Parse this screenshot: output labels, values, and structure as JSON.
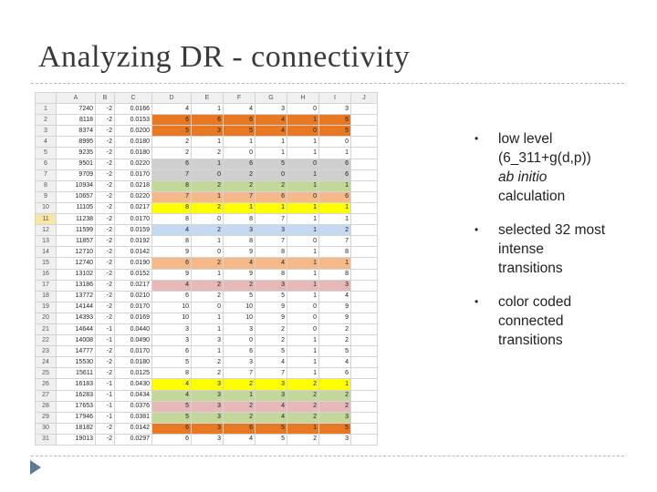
{
  "slide": {
    "title": "Analyzing DR - connectivity",
    "bullets": [
      {
        "lines": [
          "low level",
          "(6_311+g(d,p))"
        ],
        "italic": "ab initio",
        "after": "calculation"
      },
      {
        "lines": [
          "selected 32 most",
          "intense",
          "transitions"
        ]
      },
      {
        "lines": [
          "color coded",
          "connected",
          "transitions"
        ]
      }
    ]
  },
  "colors": {
    "orange": "#e97822",
    "light_orange": "#f5b98a",
    "gray": "#cfcfcf",
    "green": "#c4d79b",
    "yellow": "#ffff00",
    "blue": "#c5d9f1",
    "pink": "#e6b8b7"
  },
  "spreadsheet": {
    "columns": [
      "",
      "A",
      "B",
      "C",
      "D",
      "E",
      "F",
      "G",
      "H",
      "I",
      "J"
    ],
    "rows": [
      {
        "n": "1",
        "cells": [
          "7240",
          "-2",
          "0.0166",
          "4",
          "1",
          "4",
          "3",
          "0",
          "3"
        ],
        "color": ""
      },
      {
        "n": "2",
        "cells": [
          "8118",
          "-2",
          "0.0153",
          "6",
          "6",
          "6",
          "4",
          "1",
          "6"
        ],
        "color": "orange"
      },
      {
        "n": "3",
        "cells": [
          "8374",
          "-2",
          "0.0200",
          "5",
          "3",
          "5",
          "4",
          "0",
          "5"
        ],
        "color": "orange"
      },
      {
        "n": "4",
        "cells": [
          "8995",
          "-2",
          "0.0180",
          "2",
          "1",
          "1",
          "1",
          "1",
          "0"
        ],
        "color": ""
      },
      {
        "n": "5",
        "cells": [
          "9235",
          "-2",
          "0.0180",
          "2",
          "2",
          "0",
          "1",
          "1",
          "1"
        ],
        "color": ""
      },
      {
        "n": "6",
        "cells": [
          "9501",
          "-2",
          "0.0220",
          "6",
          "1",
          "6",
          "5",
          "0",
          "6"
        ],
        "color": "gray"
      },
      {
        "n": "7",
        "cells": [
          "9709",
          "-2",
          "0.0170",
          "7",
          "0",
          "2",
          "0",
          "1",
          "6"
        ],
        "color": "gray"
      },
      {
        "n": "8",
        "cells": [
          "10934",
          "-2",
          "0.0218",
          "8",
          "2",
          "2",
          "2",
          "1",
          "1"
        ],
        "color": "green"
      },
      {
        "n": "9",
        "cells": [
          "10657",
          "-2",
          "0.0220",
          "7",
          "1",
          "7",
          "6",
          "0",
          "6"
        ],
        "color": "light_orange"
      },
      {
        "n": "10",
        "cells": [
          "11105",
          "-2",
          "0.0217",
          "8",
          "2",
          "1",
          "1",
          "1",
          "1"
        ],
        "color": "yellow"
      },
      {
        "n": "11",
        "cells": [
          "11238",
          "-2",
          "0.0170",
          "8",
          "0",
          "8",
          "7",
          "1",
          "1"
        ],
        "color": ""
      },
      {
        "n": "12",
        "cells": [
          "11599",
          "-2",
          "0.0159",
          "4",
          "2",
          "3",
          "3",
          "1",
          "2"
        ],
        "color": "blue"
      },
      {
        "n": "13",
        "cells": [
          "11857",
          "-2",
          "0.0192",
          "8",
          "1",
          "8",
          "7",
          "0",
          "7"
        ],
        "color": ""
      },
      {
        "n": "14",
        "cells": [
          "12710",
          "-2",
          "0.0142",
          "9",
          "0",
          "9",
          "8",
          "1",
          "8"
        ],
        "color": ""
      },
      {
        "n": "15",
        "cells": [
          "12740",
          "-2",
          "0.0190",
          "6",
          "2",
          "4",
          "4",
          "1",
          "1"
        ],
        "color": "light_orange"
      },
      {
        "n": "16",
        "cells": [
          "13102",
          "-2",
          "0.0152",
          "9",
          "1",
          "9",
          "8",
          "1",
          "8"
        ],
        "color": ""
      },
      {
        "n": "17",
        "cells": [
          "13186",
          "-2",
          "0.0217",
          "4",
          "2",
          "2",
          "3",
          "1",
          "3"
        ],
        "color": "pink"
      },
      {
        "n": "18",
        "cells": [
          "13772",
          "-2",
          "0.0210",
          "6",
          "2",
          "5",
          "5",
          "1",
          "4"
        ],
        "color": ""
      },
      {
        "n": "19",
        "cells": [
          "14144",
          "-2",
          "0.0170",
          "10",
          "0",
          "10",
          "9",
          "0",
          "9"
        ],
        "color": ""
      },
      {
        "n": "20",
        "cells": [
          "14393",
          "-2",
          "0.0169",
          "10",
          "1",
          "10",
          "9",
          "0",
          "9"
        ],
        "color": ""
      },
      {
        "n": "21",
        "cells": [
          "14644",
          "-1",
          "0.0440",
          "3",
          "1",
          "3",
          "2",
          "0",
          "2"
        ],
        "color": ""
      },
      {
        "n": "22",
        "cells": [
          "14008",
          "-1",
          "0.0490",
          "3",
          "3",
          "0",
          "2",
          "1",
          "2"
        ],
        "color": ""
      },
      {
        "n": "23",
        "cells": [
          "14777",
          "-2",
          "0.0170",
          "6",
          "1",
          "6",
          "5",
          "1",
          "5"
        ],
        "color": ""
      },
      {
        "n": "24",
        "cells": [
          "15530",
          "-2",
          "0.0180",
          "5",
          "2",
          "3",
          "4",
          "1",
          "4"
        ],
        "color": ""
      },
      {
        "n": "25",
        "cells": [
          "15611",
          "-2",
          "0.0125",
          "8",
          "2",
          "7",
          "7",
          "1",
          "6"
        ],
        "color": ""
      },
      {
        "n": "26",
        "cells": [
          "16183",
          "-1",
          "0.0430",
          "4",
          "3",
          "2",
          "3",
          "2",
          "1"
        ],
        "color": "yellow"
      },
      {
        "n": "27",
        "cells": [
          "16283",
          "-1",
          "0.0434",
          "4",
          "3",
          "1",
          "3",
          "2",
          "2"
        ],
        "color": "green"
      },
      {
        "n": "28",
        "cells": [
          "17653",
          "-1",
          "0.0376",
          "5",
          "3",
          "2",
          "4",
          "2",
          "2"
        ],
        "color": "pink"
      },
      {
        "n": "29",
        "cells": [
          "17946",
          "-1",
          "0.0381",
          "5",
          "3",
          "2",
          "4",
          "2",
          "3"
        ],
        "color": "green"
      },
      {
        "n": "30",
        "cells": [
          "18182",
          "-2",
          "0.0142",
          "6",
          "3",
          "6",
          "5",
          "1",
          "5"
        ],
        "color": "orange"
      },
      {
        "n": "31",
        "cells": [
          "19013",
          "-2",
          "0.0297",
          "6",
          "3",
          "4",
          "5",
          "2",
          "3"
        ],
        "color": ""
      }
    ]
  }
}
